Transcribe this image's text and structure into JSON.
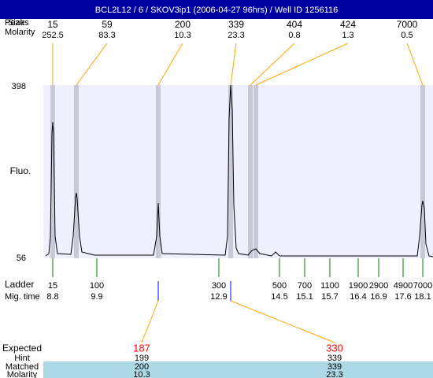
{
  "title": "BCL2L12 / 6 / SKOV3ip1 (2006-04-27 96hrs) / Well ID 1256116",
  "header": {
    "size_label": "Size",
    "peaks_label": "Peaks",
    "molarity_label": "Molarity"
  },
  "peaks": [
    {
      "size": "15",
      "molarity": "252.5"
    },
    {
      "size": "59",
      "molarity": "83.3"
    },
    {
      "size": "200",
      "molarity": "10.3"
    },
    {
      "size": "339",
      "molarity": "23.3"
    },
    {
      "size": "404",
      "molarity": "0.8"
    },
    {
      "size": "424",
      "molarity": "1.3"
    },
    {
      "size": "7000",
      "molarity": "0.5"
    }
  ],
  "y_axis": {
    "top": "398",
    "bottom": "56",
    "label": "Fluo."
  },
  "ladder": {
    "label": "Ladder",
    "time_label": "Mig. time",
    "items": [
      {
        "size": "15",
        "time": "8.8"
      },
      {
        "size": "100",
        "time": "9.9"
      },
      {
        "size": "300",
        "time": "12.9"
      },
      {
        "size": "500",
        "time": "14.5"
      },
      {
        "size": "700",
        "time": "15.1"
      },
      {
        "size": "1100",
        "time": "15.7"
      },
      {
        "size": "1900",
        "time": "16.4"
      },
      {
        "size": "2900",
        "time": "16.9"
      },
      {
        "size": "4900",
        "time": "17.6"
      },
      {
        "size": "7000",
        "time": "18.1"
      }
    ]
  },
  "expected": {
    "label": "Expected",
    "hint_label": "Hint",
    "matched_label": "Matched",
    "molarity_label": "Molarity",
    "items": [
      {
        "expected": "187",
        "hint": "199",
        "matched": "200",
        "molarity": "10.3"
      },
      {
        "expected": "330",
        "hint": "339",
        "matched": "339",
        "molarity": "23.3"
      }
    ]
  }
}
